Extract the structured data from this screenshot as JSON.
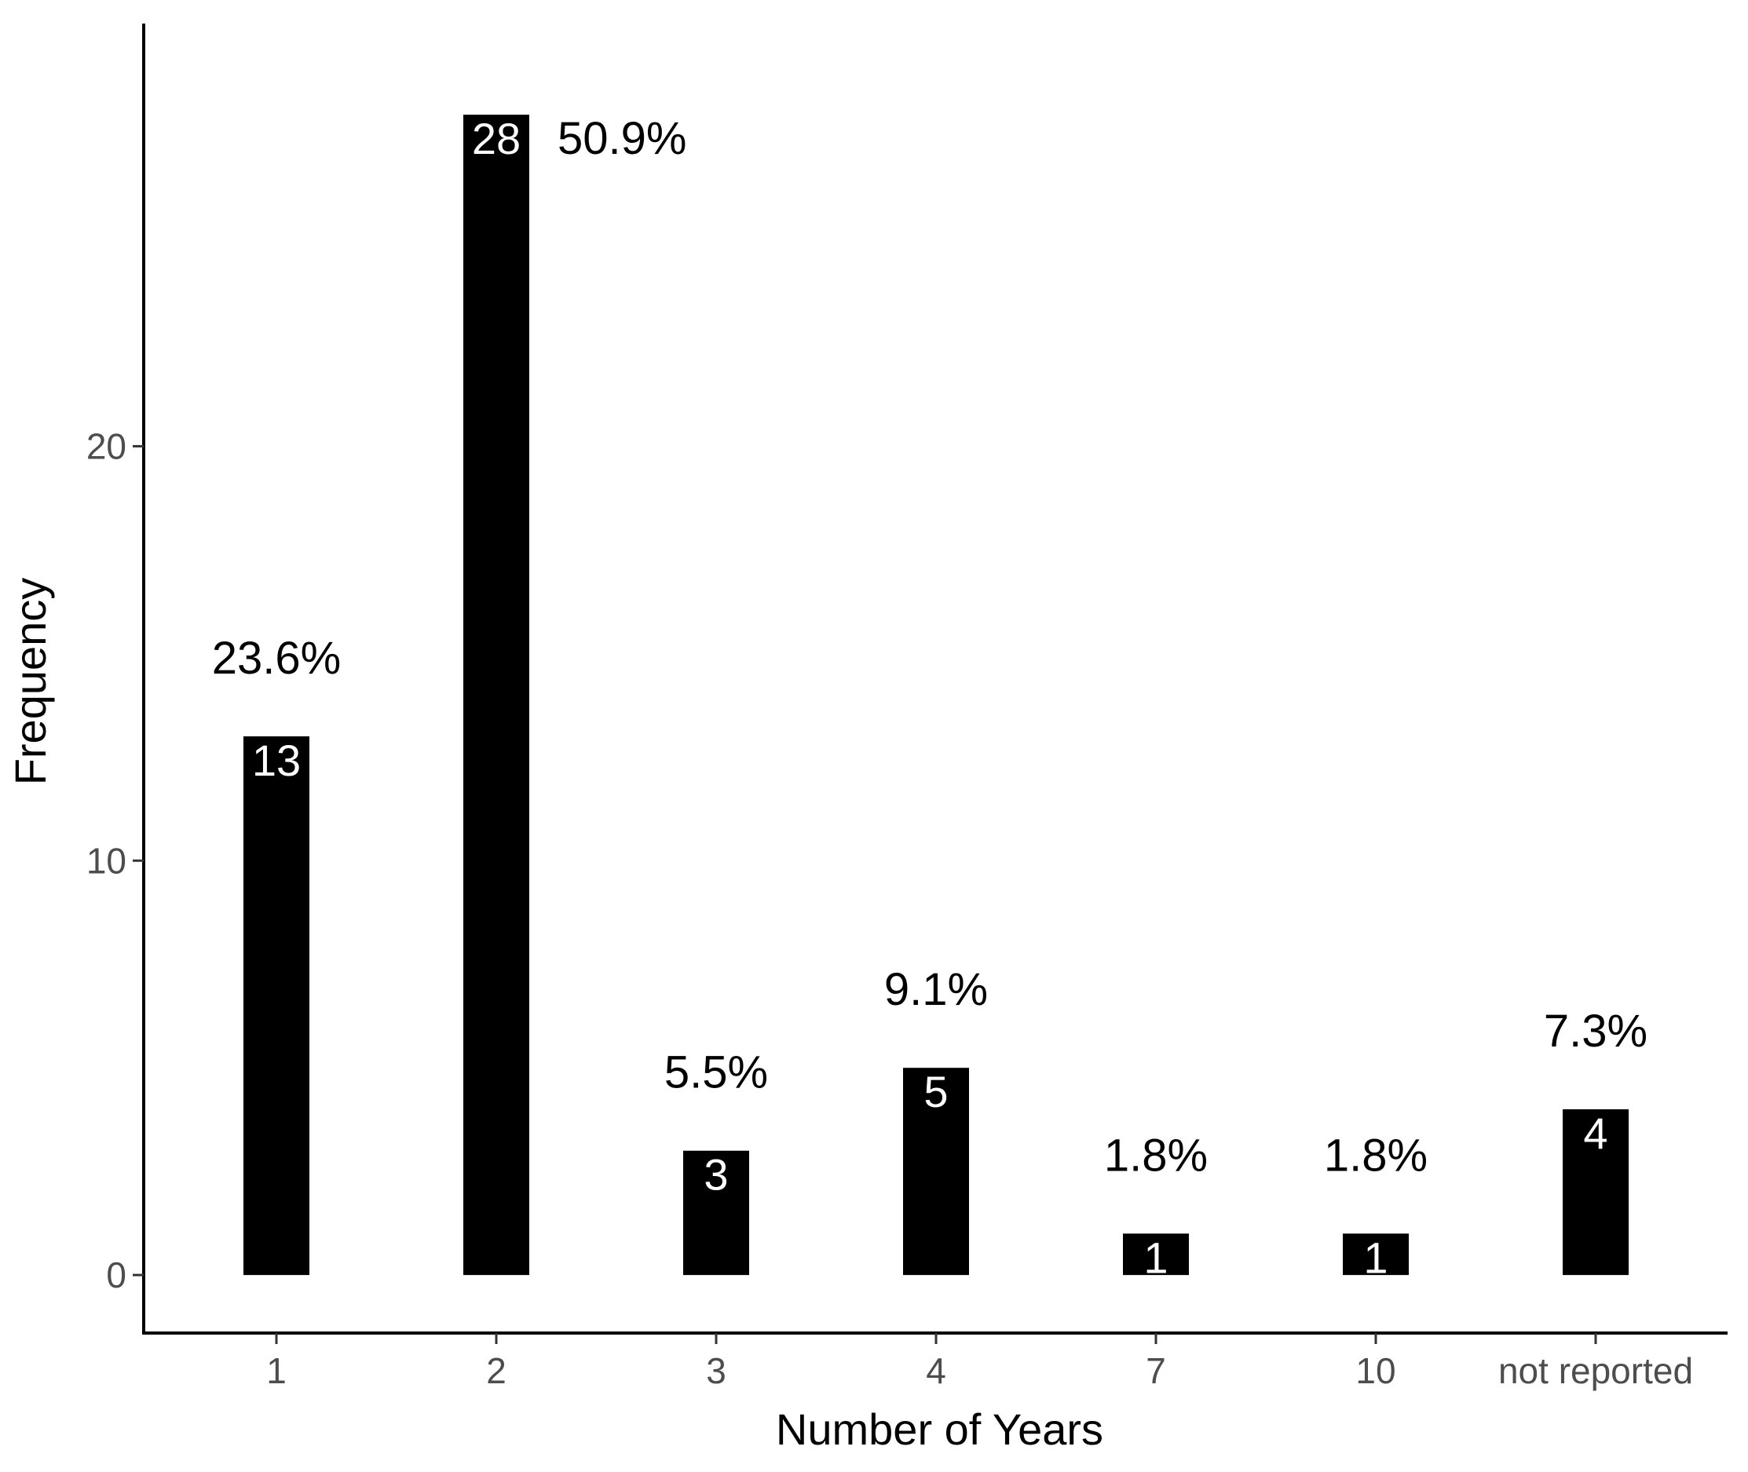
{
  "chart_data": {
    "type": "bar",
    "title": "",
    "xlabel": "Number of Years",
    "ylabel": "Frequency",
    "categories": [
      "1",
      "2",
      "3",
      "4",
      "7",
      "10",
      "not reported"
    ],
    "values": [
      13,
      28,
      3,
      5,
      1,
      1,
      4
    ],
    "count_labels": [
      "13",
      "28",
      "3",
      "5",
      "1",
      "1",
      "4"
    ],
    "percent_labels": [
      "23.6%",
      "50.9%",
      "5.5%",
      "9.1%",
      "1.8%",
      "1.8%",
      "7.3%"
    ],
    "yticks": [
      0,
      10,
      20
    ],
    "ytick_labels": [
      "0",
      "10",
      "20"
    ],
    "ylim": [
      -1.4,
      30.2
    ],
    "grid": false,
    "legend": "none",
    "bar_color": "#000000",
    "count_label_color": "#ffffff"
  }
}
